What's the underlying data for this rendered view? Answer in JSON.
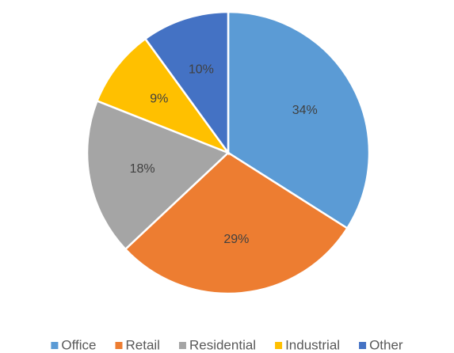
{
  "chart_data": {
    "type": "pie",
    "categories": [
      "Office",
      "Retail",
      "Residential",
      "Industrial",
      "Other"
    ],
    "values": [
      34,
      29,
      18,
      9,
      10
    ],
    "value_labels": [
      "34%",
      "29%",
      "18%",
      "9%",
      "10%"
    ],
    "colors": [
      "#5b9bd5",
      "#ed7d31",
      "#a5a5a5",
      "#ffc000",
      "#4472c4"
    ],
    "legend": "bottom"
  }
}
